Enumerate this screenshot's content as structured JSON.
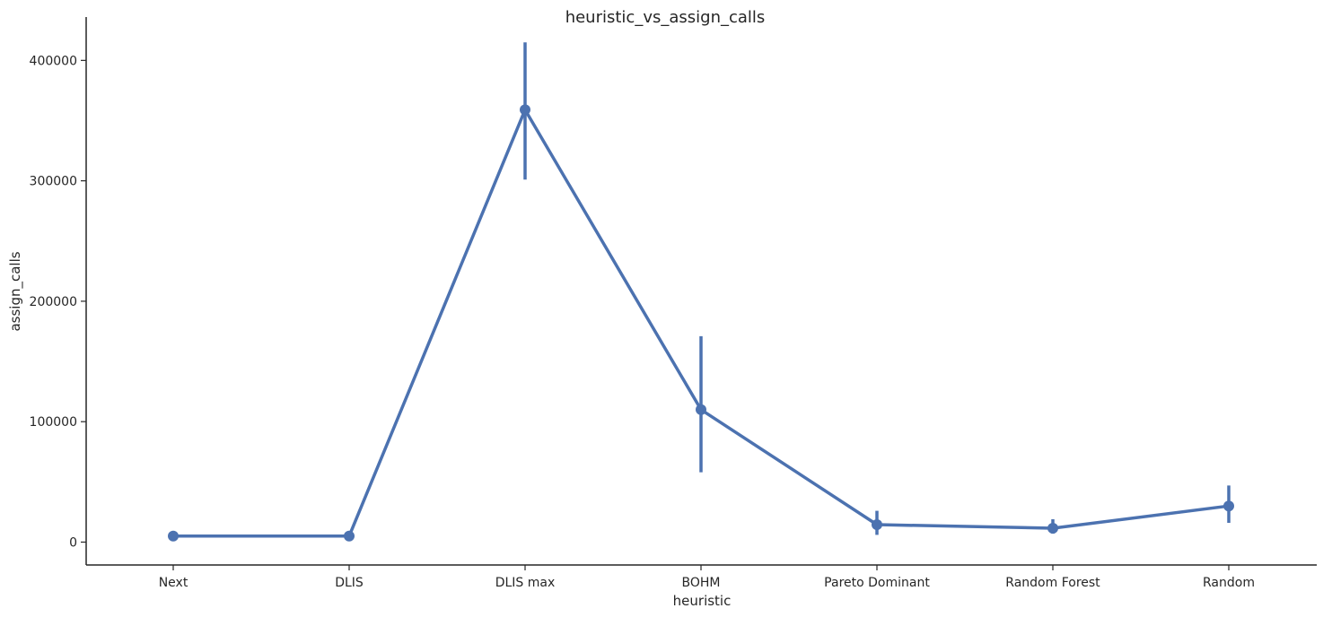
{
  "chart_data": {
    "type": "line",
    "title": "heuristic_vs_assign_calls",
    "xlabel": "heuristic",
    "ylabel": "assign_calls",
    "categories": [
      "Next",
      "DLIS",
      "DLIS max",
      "BOHM",
      "Pareto Dominant",
      "Random Forest",
      "Random"
    ],
    "series": [
      {
        "values": [
          5000,
          5000,
          359000,
          110000,
          14500,
          11500,
          30000
        ],
        "ci_low": [
          3000,
          3500,
          301000,
          58000,
          6000,
          7000,
          16000
        ],
        "ci_high": [
          8000,
          6500,
          415000,
          171000,
          26000,
          19000,
          47000
        ],
        "color": "#4c72b0"
      }
    ],
    "yticks": [
      0,
      100000,
      200000,
      300000,
      400000
    ],
    "ylim": [
      -19000,
      436000
    ],
    "grid": false,
    "legend": "none"
  }
}
